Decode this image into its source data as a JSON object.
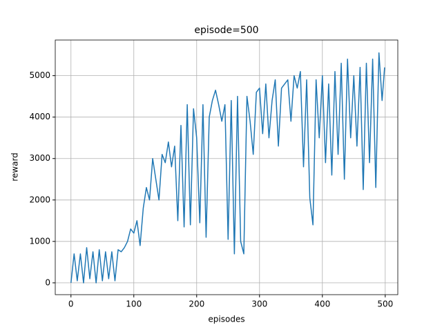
{
  "chart_data": {
    "type": "line",
    "title": "episode=500",
    "xlabel": "episodes",
    "ylabel": "reward",
    "x": [
      0,
      5,
      10,
      15,
      20,
      25,
      30,
      35,
      40,
      45,
      50,
      55,
      60,
      65,
      70,
      75,
      80,
      85,
      90,
      95,
      100,
      105,
      110,
      115,
      120,
      125,
      130,
      135,
      140,
      145,
      150,
      155,
      160,
      165,
      170,
      175,
      180,
      185,
      190,
      195,
      200,
      205,
      210,
      215,
      220,
      225,
      230,
      235,
      240,
      245,
      250,
      255,
      260,
      265,
      270,
      275,
      280,
      285,
      290,
      295,
      300,
      305,
      310,
      315,
      320,
      325,
      330,
      335,
      340,
      345,
      350,
      355,
      360,
      365,
      370,
      375,
      380,
      385,
      390,
      395,
      400,
      405,
      410,
      415,
      420,
      425,
      430,
      435,
      440,
      445,
      450,
      455,
      460,
      465,
      470,
      475,
      480,
      485,
      490,
      495,
      499
    ],
    "series": [
      {
        "name": "reward",
        "color": "#1f77b4",
        "values": [
          0,
          700,
          50,
          700,
          0,
          850,
          100,
          750,
          0,
          800,
          50,
          750,
          100,
          750,
          50,
          800,
          750,
          850,
          1000,
          1300,
          1200,
          1500,
          900,
          1800,
          2300,
          2000,
          3000,
          2500,
          2000,
          3100,
          2900,
          3400,
          2800,
          3300,
          1500,
          3800,
          1350,
          4300,
          1400,
          4200,
          3500,
          1450,
          4300,
          1100,
          4000,
          4400,
          4650,
          4300,
          3900,
          4300,
          1050,
          4400,
          700,
          4500,
          1000,
          700,
          4500,
          3900,
          3100,
          4600,
          4700,
          3600,
          4800,
          3500,
          4400,
          4900,
          3300,
          4700,
          4800,
          4900,
          3900,
          5000,
          4700,
          5100,
          2800,
          4900,
          2050,
          1400,
          4900,
          3500,
          5000,
          2900,
          4800,
          2600,
          5100,
          3100,
          5300,
          2500,
          5400,
          3500,
          5000,
          3300,
          5200,
          2250,
          5300,
          2900,
          5400,
          2300,
          5550,
          4400,
          5200
        ]
      }
    ],
    "xlim": [
      -25,
      520
    ],
    "ylim": [
      -285,
      5860
    ],
    "xticks": [
      0,
      100,
      200,
      300,
      400,
      500
    ],
    "yticks": [
      0,
      1000,
      2000,
      3000,
      4000,
      5000
    ],
    "grid": true
  }
}
